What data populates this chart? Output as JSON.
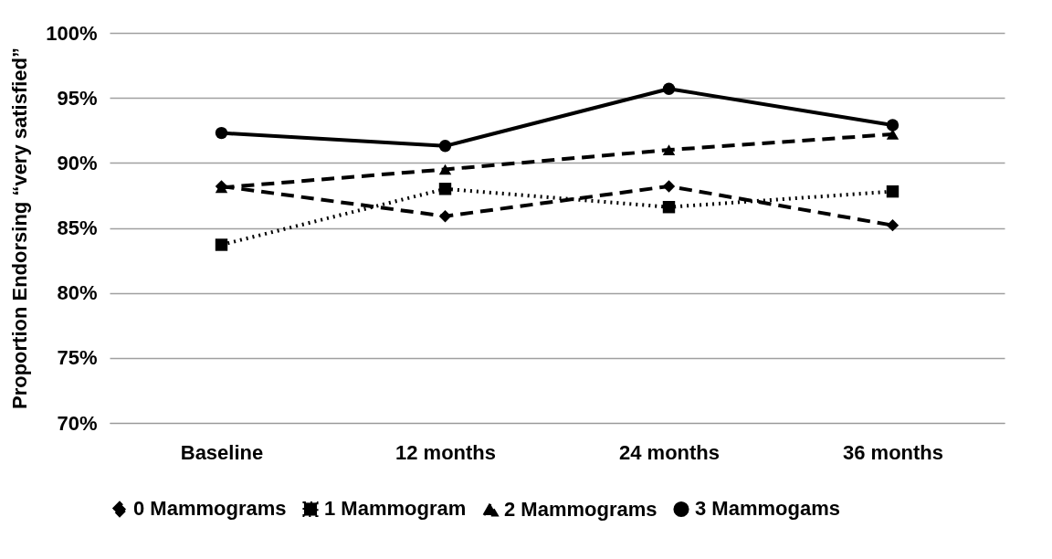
{
  "chart_data": {
    "type": "line",
    "ylabel": "Proportion Endorsing “very satisfied”",
    "categories": [
      "Baseline",
      "12 months",
      "24 months",
      "36 months"
    ],
    "series": [
      {
        "name": "0 Mammograms",
        "color": "#000000",
        "values": [
          88.2,
          85.9,
          88.2,
          85.2
        ],
        "marker": "diamond",
        "line_style": "dashed"
      },
      {
        "name": "1 Mammogram",
        "color": "#000000",
        "values": [
          83.7,
          88.0,
          86.6,
          87.8
        ],
        "marker": "square",
        "line_style": "dotted"
      },
      {
        "name": "2 Mammograms",
        "color": "#000000",
        "values": [
          88.1,
          89.5,
          91.0,
          92.2
        ],
        "marker": "triangle",
        "line_style": "dashed"
      },
      {
        "name": "3 Mammogams",
        "color": "#000000",
        "values": [
          92.3,
          91.3,
          95.7,
          92.9
        ],
        "marker": "circle",
        "line_style": "solid"
      }
    ],
    "ylim": [
      70,
      100
    ],
    "yticks": [
      {
        "value": 70,
        "label": "70%"
      },
      {
        "value": 75,
        "label": "75%"
      },
      {
        "value": 80,
        "label": "80%"
      },
      {
        "value": 85,
        "label": "85%"
      },
      {
        "value": 90,
        "label": "90%"
      },
      {
        "value": 95,
        "label": "95%"
      },
      {
        "value": 100,
        "label": "100%"
      }
    ],
    "grid": "y",
    "legend": "bottom"
  }
}
